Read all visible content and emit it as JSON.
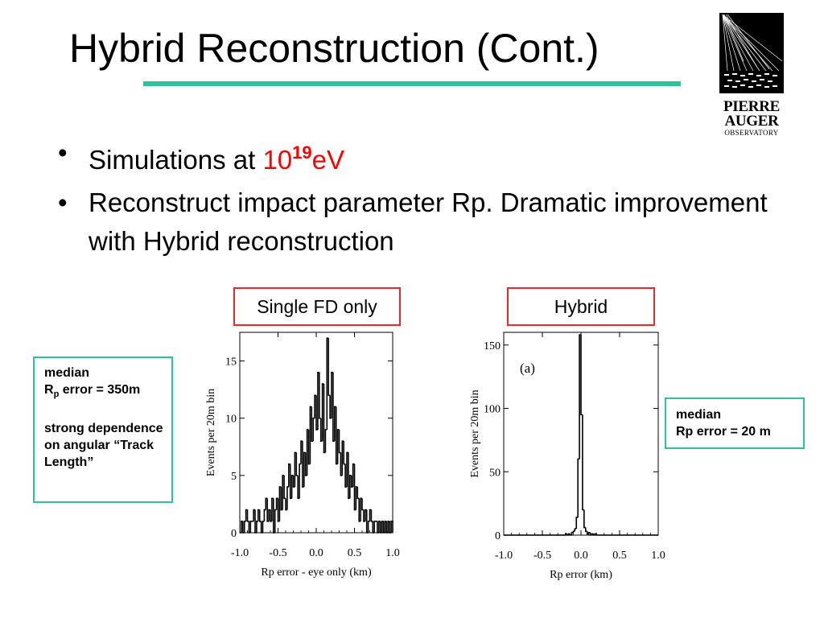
{
  "slide": {
    "title": "Hybrid Reconstruction (Cont.)",
    "logo": {
      "line1": "PIERRE",
      "line2": "AUGER",
      "line3": "OBSERVATORY"
    },
    "bullets": [
      {
        "dot": "•",
        "text_before": "Simulations at ",
        "red_base": "10",
        "red_exp": "19",
        "red_after": "eV"
      },
      {
        "dot": "•",
        "text": "Reconstruct impact parameter Rp.  Dramatic improvement with Hybrid reconstruction"
      }
    ],
    "left_label": "Single FD only",
    "right_label": "Hybrid",
    "left_note": {
      "line1": "median",
      "line2_prefix": "R",
      "line2_sub": "p",
      "line2_suffix": " error = 350m",
      "line3": "strong dependence on angular “Track Length”"
    },
    "right_note": {
      "line1": "median",
      "line2": "Rp error = 20 m"
    },
    "colors": {
      "accent": "#2fc39b",
      "label_border": "#e8282b",
      "highlight": "#ff0000"
    }
  },
  "chart_data": [
    {
      "type": "histogram",
      "ylabel": "Events per 20m bin",
      "xlabel": "Rp error - eye only (km)",
      "xlim": [
        -1.0,
        1.0
      ],
      "ylim": [
        0,
        17.5
      ],
      "xticks": [
        -1.0,
        -0.5,
        0.0,
        0.5,
        1.0
      ],
      "xtick_labels": [
        "-1.0",
        "-0.5",
        "0.0",
        "0.5",
        "1.0"
      ],
      "yticks": [
        0,
        5,
        10,
        15
      ],
      "ytick_labels": [
        "0",
        "5",
        "10",
        "15"
      ],
      "bin_width": 0.02,
      "bin_start": -1.0,
      "counts": [
        0,
        1,
        0,
        1,
        2,
        1,
        0,
        1,
        1,
        2,
        0,
        1,
        2,
        1,
        0,
        1,
        2,
        3,
        1,
        2,
        1,
        3,
        0,
        2,
        3,
        1,
        4,
        2,
        5,
        3,
        2,
        4,
        6,
        3,
        5,
        4,
        7,
        5,
        3,
        6,
        8,
        4,
        7,
        5,
        9,
        6,
        11,
        8,
        10,
        12,
        9,
        14,
        10,
        8,
        13,
        7,
        9,
        17,
        12,
        10,
        14,
        8,
        11,
        6,
        9,
        7,
        5,
        8,
        6,
        4,
        7,
        3,
        5,
        4,
        6,
        2,
        4,
        3,
        1,
        3,
        2,
        1,
        2,
        0,
        1,
        2,
        1,
        0,
        1,
        1,
        0,
        1,
        0,
        1,
        0,
        1,
        0,
        1,
        0,
        1
      ],
      "annotation": ""
    },
    {
      "type": "histogram",
      "ylabel": "Events per 20m bin",
      "xlabel": "Rp error (km)",
      "xlim": [
        -1.0,
        1.0
      ],
      "ylim": [
        0,
        160
      ],
      "xticks": [
        -1.0,
        -0.5,
        0.0,
        0.5,
        1.0
      ],
      "xtick_labels": [
        "-1.0",
        "-0.5",
        "0.0",
        "0.5",
        "1.0"
      ],
      "yticks": [
        0,
        50,
        100,
        150
      ],
      "ytick_labels": [
        "0",
        "50",
        "100",
        "150"
      ],
      "bin_width": 0.02,
      "bin_start": -1.0,
      "counts": [
        0,
        0,
        0,
        0,
        0,
        0,
        0,
        0,
        0,
        0,
        0,
        0,
        0,
        0,
        0,
        0,
        0,
        0,
        0,
        0,
        0,
        0,
        0,
        0,
        0,
        0,
        0,
        0,
        0,
        0,
        0,
        0,
        0,
        0,
        0,
        0,
        0,
        0,
        0,
        0,
        1,
        0,
        1,
        0,
        2,
        3,
        5,
        14,
        60,
        158,
        95,
        20,
        6,
        3,
        1,
        2,
        0,
        1,
        0,
        1,
        0,
        0,
        0,
        0,
        0,
        0,
        0,
        0,
        0,
        0,
        0,
        0,
        0,
        0,
        0,
        0,
        0,
        0,
        0,
        0,
        0,
        0,
        0,
        0,
        0,
        0,
        0,
        0,
        0,
        0,
        0,
        0,
        0,
        0,
        0,
        0,
        0,
        0,
        0,
        0
      ],
      "annotation": "(a)"
    }
  ]
}
